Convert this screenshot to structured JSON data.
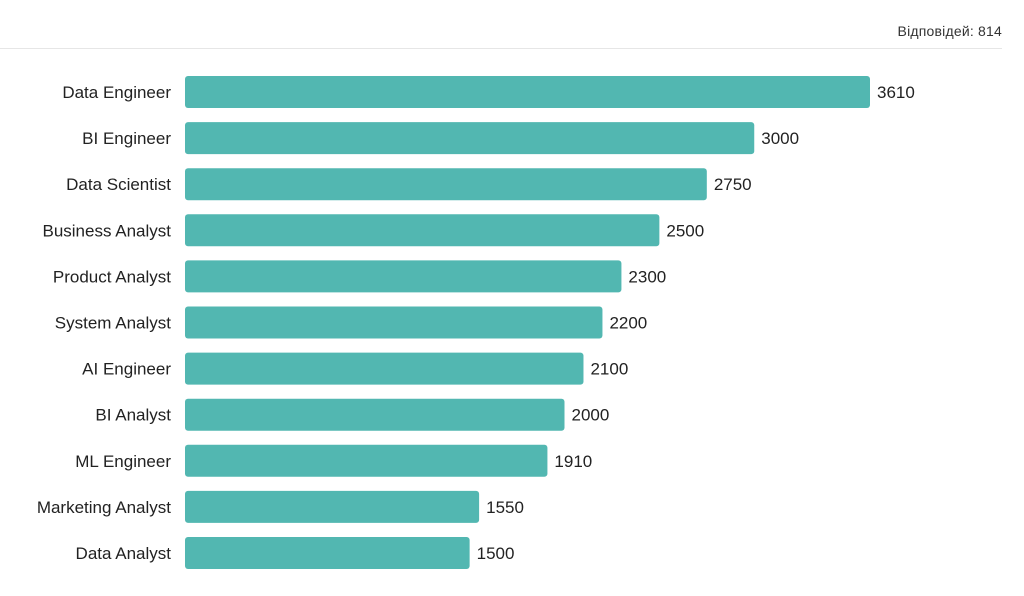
{
  "header": {
    "responses_text": "Відповідей: 814"
  },
  "colors": {
    "bar": "#52b7b1",
    "divider": "#e6e6e6",
    "text": "#222222"
  },
  "chart_data": {
    "type": "bar",
    "orientation": "horizontal",
    "categories": [
      "Data Engineer",
      "BI Engineer",
      "Data Scientist",
      "Business Analyst",
      "Product Analyst",
      "System Analyst",
      "AI Engineer",
      "BI Analyst",
      "ML Engineer",
      "Marketing Analyst",
      "Data Analyst"
    ],
    "values": [
      3610,
      3000,
      2750,
      2500,
      2300,
      2200,
      2100,
      2000,
      1910,
      1550,
      1500
    ],
    "title": "",
    "xlabel": "",
    "ylabel": "",
    "xlim": [
      0,
      3610
    ],
    "grid": false,
    "legend": "none",
    "data_labels": true
  }
}
